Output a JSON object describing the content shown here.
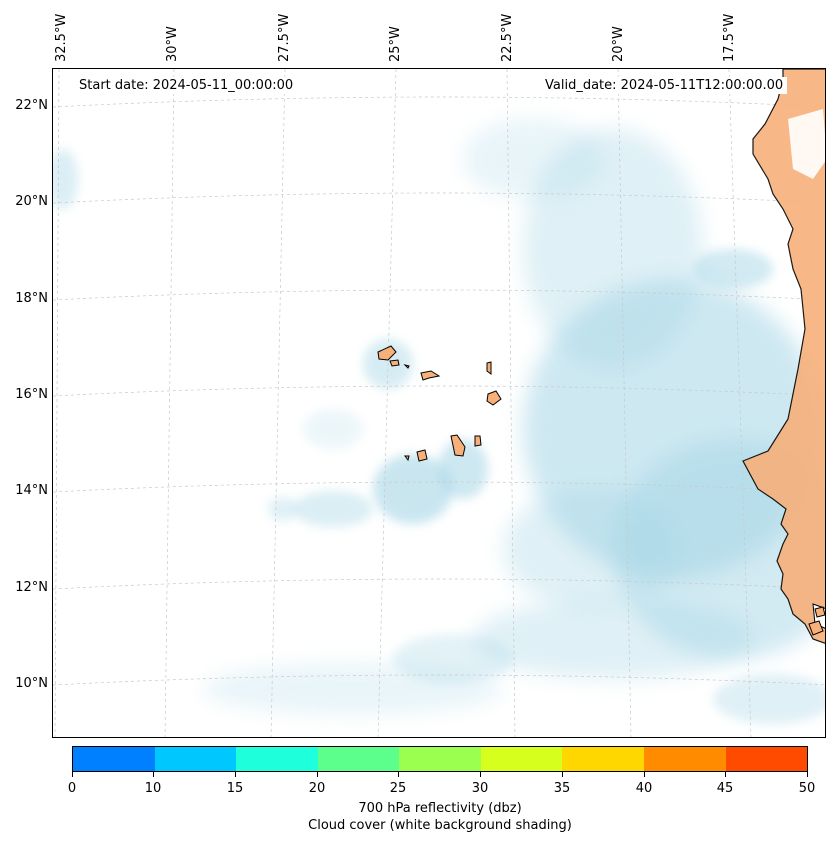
{
  "header": {
    "start_date": "Start date: 2024-05-11_00:00:00",
    "valid_date": "Valid_date: 2024-05-11T12:00:00.00"
  },
  "axes": {
    "lon_labels": [
      "32.5°W",
      "30°W",
      "27.5°W",
      "25°W",
      "22.5°W",
      "20°W",
      "17.5°W"
    ],
    "lat_labels": [
      "22°N",
      "20°N",
      "18°N",
      "16°N",
      "14°N",
      "12°N",
      "10°N"
    ]
  },
  "colorbar": {
    "ticks": [
      "0",
      "10",
      "15",
      "20",
      "25",
      "30",
      "35",
      "40",
      "45",
      "50"
    ],
    "colors": [
      "#0080ff",
      "#00c8ff",
      "#1effdc",
      "#5cff8c",
      "#9bff50",
      "#d7ff1e",
      "#ffd700",
      "#ff8c00",
      "#ff4b00"
    ],
    "label": "700 hPa reflectivity (dbz)",
    "sublabel": "Cloud cover (white background shading)"
  },
  "colors": {
    "land": "#f7b07a",
    "cloud": "#a6d6e6",
    "gridline": "#c8c8c8"
  }
}
